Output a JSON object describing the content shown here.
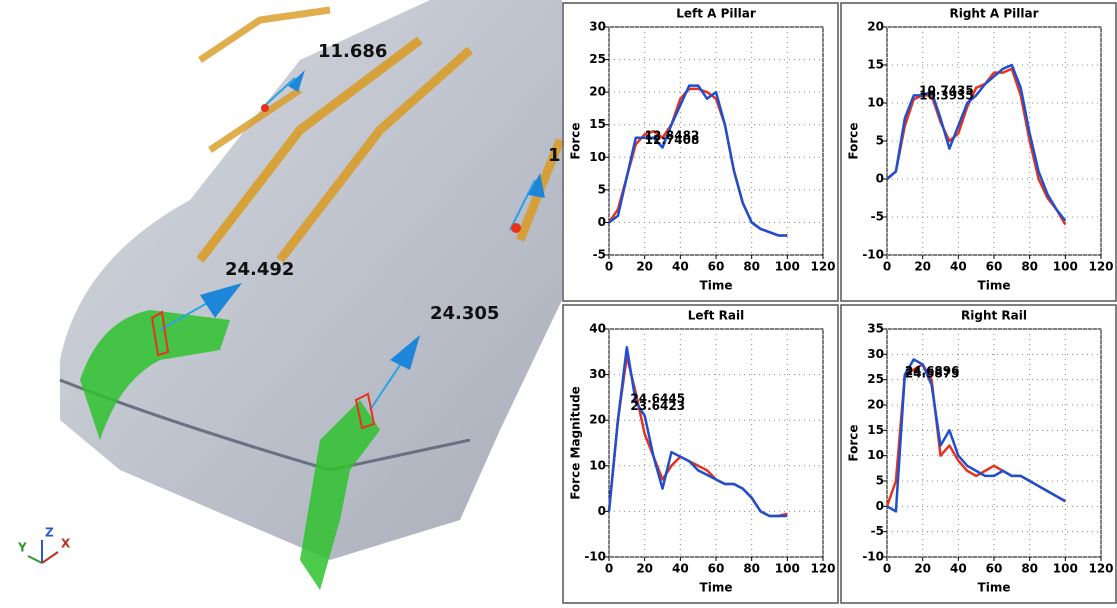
{
  "viewport": {
    "labels": [
      "11.686",
      "24.492",
      "24.305",
      "1"
    ],
    "triad": [
      "Y",
      "Z",
      "X"
    ]
  },
  "chart_data": [
    {
      "type": "line",
      "title": "Left A Pillar",
      "xlabel": "Time",
      "ylabel": "Force",
      "x": [
        0,
        5,
        10,
        15,
        20,
        25,
        30,
        35,
        40,
        45,
        50,
        55,
        60,
        65,
        70,
        75,
        80,
        85,
        90,
        95,
        100
      ],
      "series": [
        {
          "color": "#e8321e",
          "values": [
            0,
            2,
            7,
            12,
            13.5,
            14,
            13,
            15,
            19,
            20.5,
            20.5,
            20,
            19,
            15,
            8,
            3,
            0,
            -1,
            -1.5,
            -2,
            -2
          ]
        },
        {
          "color": "#1f4fd1",
          "values": [
            0,
            1,
            7,
            13,
            13,
            13,
            11.5,
            15,
            18,
            21,
            21,
            19,
            20,
            15,
            8,
            3,
            0,
            -1,
            -1.5,
            -2,
            -2
          ]
        }
      ],
      "xlim": [
        0,
        120
      ],
      "xticks": [
        0,
        20,
        40,
        60,
        80,
        100,
        120
      ],
      "ylim": [
        -5,
        30
      ],
      "yticks": [
        -5,
        0,
        5,
        10,
        15,
        20,
        25,
        30
      ],
      "grid": true,
      "annotations": [
        {
          "text": "12.8482",
          "x": 20,
          "y": 13.3
        },
        {
          "text": "12.7408",
          "x": 20,
          "y": 12.6
        }
      ]
    },
    {
      "type": "line",
      "title": "Right A Pillar",
      "xlabel": "Time",
      "ylabel": "Force",
      "x": [
        0,
        5,
        10,
        15,
        20,
        25,
        30,
        35,
        40,
        45,
        50,
        55,
        60,
        65,
        70,
        75,
        80,
        85,
        90,
        95,
        100
      ],
      "series": [
        {
          "color": "#e8321e",
          "values": [
            0,
            1,
            7,
            10.5,
            11,
            11,
            7.5,
            5,
            6,
            9.5,
            12,
            12.5,
            14,
            14,
            14.5,
            11,
            5,
            0,
            -2.5,
            -4,
            -6
          ]
        },
        {
          "color": "#1f4fd1",
          "values": [
            0,
            1,
            8,
            11,
            11,
            11.5,
            8,
            4,
            7,
            10,
            11,
            12.5,
            13.5,
            14.5,
            15,
            12,
            6,
            1,
            -2,
            -4,
            -5.5
          ]
        }
      ],
      "xlim": [
        0,
        120
      ],
      "xticks": [
        0,
        20,
        40,
        60,
        80,
        100,
        120
      ],
      "ylim": [
        -10,
        20
      ],
      "yticks": [
        -10,
        -5,
        0,
        5,
        10,
        15,
        20
      ],
      "grid": true,
      "annotations": [
        {
          "text": "10.7435",
          "x": 18,
          "y": 11.6
        },
        {
          "text": "10.3935",
          "x": 18,
          "y": 10.9
        }
      ]
    },
    {
      "type": "line",
      "title": "Left Rail",
      "xlabel": "Time",
      "ylabel": "Force Magnitude",
      "x": [
        0,
        5,
        10,
        15,
        20,
        25,
        30,
        35,
        40,
        45,
        50,
        55,
        60,
        65,
        70,
        75,
        80,
        85,
        90,
        95,
        100
      ],
      "series": [
        {
          "color": "#e8321e",
          "values": [
            0,
            20,
            34,
            26,
            17,
            12,
            7,
            10,
            12,
            11,
            10,
            9,
            7,
            6,
            6,
            5,
            3,
            0,
            -1,
            -1,
            -0.5
          ]
        },
        {
          "color": "#1f4fd1",
          "values": [
            0,
            20,
            36,
            24,
            21,
            12,
            5,
            13,
            12,
            11,
            9,
            8,
            7,
            6,
            6,
            5,
            3,
            0,
            -1,
            -1,
            -1
          ]
        }
      ],
      "xlim": [
        0,
        120
      ],
      "xticks": [
        0,
        20,
        40,
        60,
        80,
        100,
        120
      ],
      "ylim": [
        -10,
        40
      ],
      "yticks": [
        -10,
        0,
        10,
        20,
        30,
        40
      ],
      "grid": true,
      "annotations": [
        {
          "text": "24.6445",
          "x": 12,
          "y": 24.6
        },
        {
          "text": "23.6423",
          "x": 12,
          "y": 23.0
        }
      ]
    },
    {
      "type": "line",
      "title": "Right Rail",
      "xlabel": "Time",
      "ylabel": "Force",
      "x": [
        0,
        5,
        10,
        15,
        20,
        25,
        30,
        35,
        40,
        45,
        50,
        55,
        60,
        65,
        70,
        75,
        80,
        85,
        90,
        95,
        100
      ],
      "series": [
        {
          "color": "#e8321e",
          "values": [
            0,
            5,
            26,
            27,
            28,
            25,
            10,
            12,
            9,
            7,
            6,
            7,
            8,
            7,
            6,
            6,
            5,
            4,
            3,
            2,
            1
          ]
        },
        {
          "color": "#1f4fd1",
          "values": [
            0,
            -1,
            26,
            29,
            28,
            24,
            12,
            15,
            10,
            8,
            7,
            6,
            6,
            7,
            6,
            6,
            5,
            4,
            3,
            2,
            1
          ]
        }
      ],
      "xlim": [
        0,
        120
      ],
      "xticks": [
        0,
        20,
        40,
        60,
        80,
        100,
        120
      ],
      "ylim": [
        -10,
        35
      ],
      "yticks": [
        -10,
        -5,
        0,
        5,
        10,
        15,
        20,
        25,
        30,
        35
      ],
      "grid": true,
      "annotations": [
        {
          "text": "24.6896",
          "x": 10,
          "y": 26.6
        },
        {
          "text": "24.5875",
          "x": 10,
          "y": 26.1
        }
      ]
    }
  ]
}
